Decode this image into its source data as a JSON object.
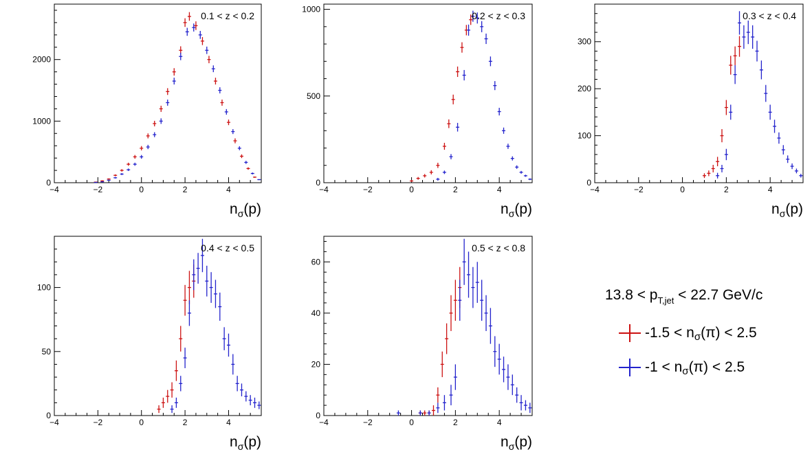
{
  "chart_data": [
    {
      "type": "scatter",
      "title": "0.1 < z < 0.2",
      "xlabel": "nσ(p)",
      "xlim": [
        -4,
        5.5
      ],
      "ylim": [
        0,
        2900
      ],
      "xticks": [
        "−4",
        "−2",
        "0",
        "2",
        "4"
      ],
      "yticks": [
        "0",
        "1000",
        "2000"
      ],
      "series": [
        {
          "color": "#cc1111",
          "x": [
            -2.1,
            -1.8,
            -1.5,
            -1.2,
            -0.9,
            -0.6,
            -0.3,
            0.0,
            0.3,
            0.6,
            0.9,
            1.2,
            1.5,
            1.8,
            2.0,
            2.2,
            2.5,
            2.8,
            3.1,
            3.4,
            3.7,
            4.0,
            4.3,
            4.6,
            4.9,
            5.2
          ],
          "y": [
            10,
            30,
            60,
            120,
            200,
            300,
            420,
            560,
            760,
            960,
            1200,
            1480,
            1800,
            2150,
            2600,
            2700,
            2550,
            2300,
            2000,
            1650,
            1300,
            980,
            680,
            430,
            230,
            90
          ],
          "err": [
            5,
            8,
            10,
            15,
            20,
            25,
            30,
            35,
            40,
            45,
            50,
            55,
            60,
            65,
            70,
            70,
            70,
            65,
            60,
            55,
            50,
            45,
            40,
            30,
            20,
            10
          ]
        },
        {
          "color": "#2222cc",
          "x": [
            -2.1,
            -1.8,
            -1.5,
            -1.2,
            -0.9,
            -0.6,
            -0.3,
            0.0,
            0.3,
            0.6,
            0.9,
            1.2,
            1.5,
            1.8,
            2.1,
            2.4,
            2.7,
            3.0,
            3.3,
            3.6,
            3.9,
            4.2,
            4.5,
            4.8,
            5.1,
            5.4
          ],
          "y": [
            5,
            15,
            40,
            80,
            140,
            210,
            300,
            420,
            580,
            780,
            1000,
            1300,
            1650,
            2050,
            2450,
            2520,
            2400,
            2150,
            1850,
            1500,
            1150,
            830,
            560,
            330,
            150,
            50
          ],
          "err": [
            4,
            6,
            8,
            12,
            16,
            20,
            25,
            30,
            35,
            40,
            45,
            50,
            55,
            60,
            65,
            65,
            65,
            60,
            55,
            50,
            45,
            40,
            32,
            25,
            15,
            8
          ]
        }
      ]
    },
    {
      "type": "scatter",
      "title": "0.2 < z < 0.3",
      "xlabel": "nσ(p)",
      "xlim": [
        -4,
        5.5
      ],
      "ylim": [
        0,
        1030
      ],
      "xticks": [
        "−4",
        "−2",
        "0",
        "2",
        "4"
      ],
      "yticks": [
        "0",
        "500",
        "1000"
      ],
      "series": [
        {
          "color": "#cc1111",
          "x": [
            0.0,
            0.3,
            0.6,
            0.9,
            1.2,
            1.5,
            1.7,
            1.9,
            2.1,
            2.3,
            2.5,
            2.7
          ],
          "y": [
            10,
            25,
            40,
            60,
            100,
            210,
            340,
            480,
            640,
            780,
            880,
            940
          ],
          "err": [
            5,
            8,
            10,
            12,
            15,
            20,
            25,
            28,
            30,
            30,
            30,
            30
          ]
        },
        {
          "color": "#2222cc",
          "x": [
            1.2,
            1.5,
            1.8,
            2.1,
            2.4,
            2.6,
            2.8,
            3.0,
            3.2,
            3.4,
            3.6,
            3.8,
            4.0,
            4.2,
            4.4,
            4.6,
            4.8,
            5.0,
            5.2,
            5.4
          ],
          "y": [
            20,
            60,
            150,
            320,
            620,
            880,
            960,
            950,
            900,
            830,
            700,
            560,
            410,
            300,
            210,
            140,
            90,
            60,
            40,
            20
          ],
          "err": [
            8,
            10,
            15,
            25,
            30,
            32,
            32,
            32,
            32,
            30,
            28,
            26,
            22,
            18,
            15,
            12,
            10,
            8,
            6,
            5
          ]
        }
      ]
    },
    {
      "type": "scatter",
      "title": "0.3 < z < 0.4",
      "xlabel": "nσ(p)",
      "xlim": [
        -4,
        5.5
      ],
      "ylim": [
        0,
        380
      ],
      "xticks": [
        "−4",
        "−2",
        "0",
        "2",
        "4"
      ],
      "yticks": [
        "0",
        "100",
        "200",
        "300"
      ],
      "series": [
        {
          "color": "#cc1111",
          "x": [
            1.0,
            1.2,
            1.4,
            1.6,
            1.8,
            2.0,
            2.2,
            2.4,
            2.6
          ],
          "y": [
            15,
            20,
            30,
            45,
            100,
            160,
            250,
            270,
            290
          ],
          "err": [
            5,
            6,
            8,
            10,
            14,
            16,
            20,
            20,
            22
          ]
        },
        {
          "color": "#2222cc",
          "x": [
            1.6,
            1.8,
            2.0,
            2.2,
            2.4,
            2.6,
            2.8,
            3.0,
            3.2,
            3.4,
            3.6,
            3.8,
            4.0,
            4.2,
            4.4,
            4.6,
            4.8,
            5.0,
            5.2,
            5.4
          ],
          "y": [
            15,
            30,
            60,
            150,
            230,
            340,
            310,
            320,
            310,
            280,
            240,
            190,
            150,
            120,
            95,
            70,
            50,
            35,
            25,
            15
          ],
          "err": [
            6,
            8,
            12,
            16,
            20,
            25,
            25,
            25,
            25,
            22,
            20,
            18,
            16,
            14,
            12,
            10,
            8,
            6,
            5,
            4
          ]
        }
      ]
    },
    {
      "type": "scatter",
      "title": "0.4 < z < 0.5",
      "xlabel": "nσ(p)",
      "xlim": [
        -4,
        5.5
      ],
      "ylim": [
        0,
        140
      ],
      "xticks": [
        "−4",
        "−2",
        "0",
        "2",
        "4"
      ],
      "yticks": [
        "0",
        "50",
        "100"
      ],
      "series": [
        {
          "color": "#cc1111",
          "x": [
            0.8,
            1.0,
            1.2,
            1.4,
            1.6,
            1.8,
            2.0,
            2.2,
            2.4
          ],
          "y": [
            5,
            10,
            15,
            20,
            35,
            60,
            90,
            100,
            105
          ],
          "err": [
            3,
            4,
            5,
            6,
            8,
            10,
            12,
            13,
            13
          ]
        },
        {
          "color": "#2222cc",
          "x": [
            1.4,
            1.6,
            1.8,
            2.0,
            2.2,
            2.4,
            2.6,
            2.8,
            3.0,
            3.2,
            3.4,
            3.6,
            3.8,
            4.0,
            4.2,
            4.4,
            4.6,
            4.8,
            5.0,
            5.2,
            5.4
          ],
          "y": [
            5,
            10,
            25,
            45,
            80,
            110,
            115,
            125,
            105,
            100,
            95,
            85,
            60,
            55,
            40,
            25,
            20,
            15,
            12,
            10,
            8
          ],
          "err": [
            3,
            4,
            6,
            8,
            10,
            12,
            12,
            13,
            12,
            12,
            11,
            11,
            9,
            9,
            8,
            6,
            5,
            4,
            4,
            4,
            3
          ]
        }
      ]
    },
    {
      "type": "scatter",
      "title": "0.5 < z < 0.8",
      "xlabel": "nσ(p)",
      "xlim": [
        -4,
        5.5
      ],
      "ylim": [
        0,
        70
      ],
      "xticks": [
        "−4",
        "−2",
        "0",
        "2",
        "4"
      ],
      "yticks": [
        "0",
        "20",
        "40",
        "60"
      ],
      "series": [
        {
          "color": "#cc1111",
          "x": [
            0.4,
            0.6,
            0.8,
            1.0,
            1.2,
            1.4,
            1.6,
            1.8,
            2.0,
            2.2
          ],
          "y": [
            1,
            1,
            1,
            2,
            8,
            20,
            30,
            40,
            45,
            50
          ],
          "err": [
            1,
            1,
            1,
            2,
            3,
            5,
            6,
            7,
            8,
            8
          ]
        },
        {
          "color": "#2222cc",
          "x": [
            -0.6,
            0.4,
            0.8,
            1.2,
            1.5,
            1.8,
            2.0,
            2.2,
            2.4,
            2.6,
            2.8,
            3.0,
            3.2,
            3.4,
            3.6,
            3.8,
            4.0,
            4.2,
            4.4,
            4.6,
            4.8,
            5.0,
            5.2,
            5.4
          ],
          "y": [
            1,
            1,
            1,
            3,
            5,
            8,
            15,
            45,
            60,
            55,
            50,
            52,
            45,
            40,
            35,
            25,
            22,
            18,
            15,
            12,
            8,
            5,
            4,
            3
          ],
          "err": [
            1,
            1,
            1,
            2,
            3,
            4,
            5,
            8,
            9,
            9,
            8,
            8,
            8,
            7,
            7,
            6,
            6,
            5,
            5,
            4,
            3,
            3,
            2,
            2
          ]
        }
      ]
    }
  ],
  "legend": {
    "title": {
      "pre": "13.8 < p",
      "sub": "T,jet",
      "post": " < 22.7 GeV/c"
    },
    "entries": [
      {
        "color": "#cc1111",
        "pre": "-1.5 < n",
        "sub": "σ",
        "post": "(π) < 2.5"
      },
      {
        "color": "#2222cc",
        "pre": "-1 < n",
        "sub": "σ",
        "post": "(π) < 2.5"
      }
    ]
  }
}
